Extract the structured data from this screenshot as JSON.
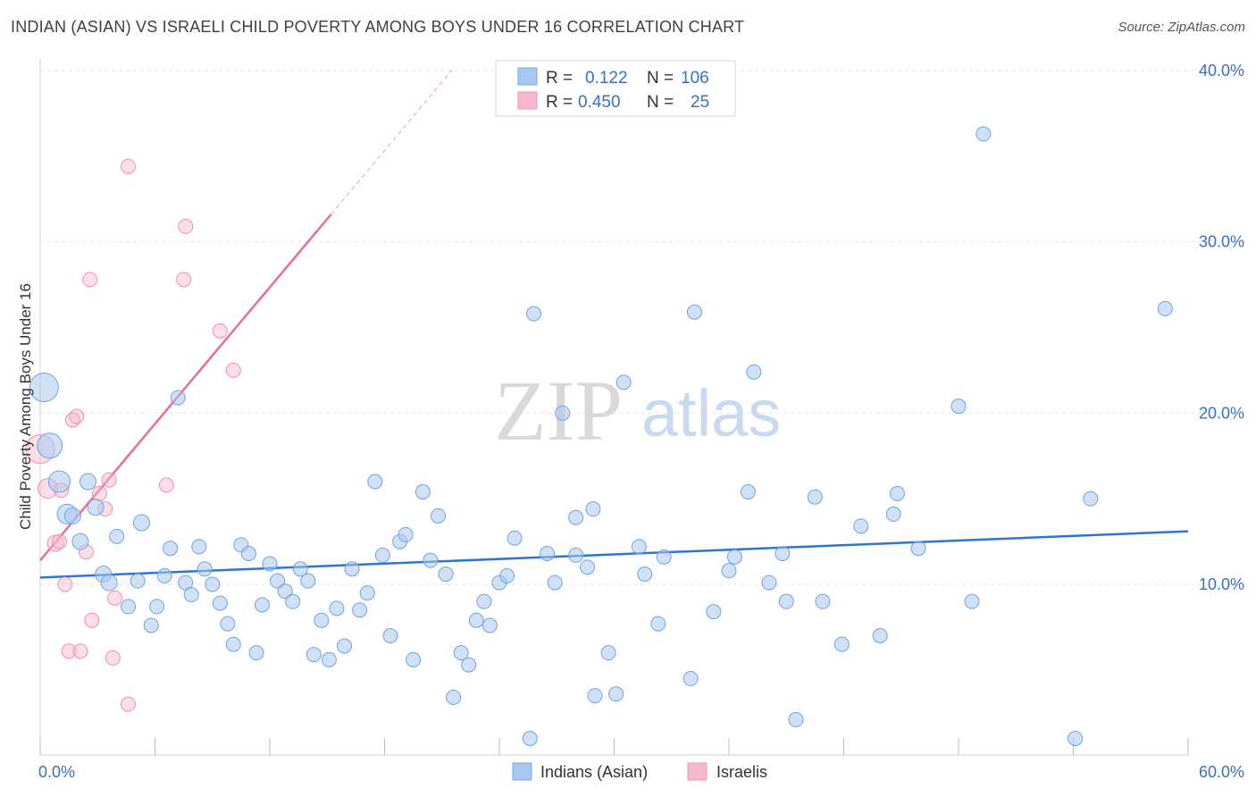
{
  "header": {
    "title": "INDIAN (ASIAN) VS ISRAELI CHILD POVERTY AMONG BOYS UNDER 16 CORRELATION CHART",
    "source": "Source: ZipAtlas.com"
  },
  "watermark": {
    "zip": "ZIP",
    "atlas": "atlas"
  },
  "legend_box": {
    "rows": [
      {
        "r_label": "R =",
        "r_value": "0.122",
        "n_label": "N =",
        "n_value": "106",
        "color": "#a9c8ee"
      },
      {
        "r_label": "R =",
        "r_value": "0.450",
        "n_label": "N =",
        "n_value": "25",
        "color": "#f5b8cb"
      }
    ]
  },
  "bottom_legend": [
    {
      "label": "Indians (Asian)",
      "color": "#a9c8ee"
    },
    {
      "label": "Israelis",
      "color": "#f5b8cb"
    }
  ],
  "chart_data": {
    "type": "scatter",
    "title": "INDIAN (ASIAN) VS ISRAELI CHILD POVERTY AMONG BOYS UNDER 16 CORRELATION CHART",
    "xlabel": "",
    "ylabel": "Child Poverty Among Boys Under 16",
    "xlim": [
      0,
      60
    ],
    "ylim": [
      0,
      40
    ],
    "x_tick_labels": [
      "0.0%",
      "60.0%"
    ],
    "y_ticks": [
      10,
      20,
      30,
      40
    ],
    "y_tick_labels": [
      "10.0%",
      "20.0%",
      "30.0%",
      "40.0%"
    ],
    "grid": true,
    "legend_position": "top-center",
    "colors": {
      "indians": "#6fa3e0",
      "israelis": "#ef8fae",
      "indians_line": "#2f74d0",
      "israelis_line": "#e86d95"
    },
    "series": [
      {
        "name": "Indians (Asian)",
        "trend": {
          "x0": 0,
          "y0": 10.4,
          "x1": 60,
          "y1": 13.1
        },
        "points": [
          [
            0.2,
            21.5,
            16
          ],
          [
            0.5,
            18.1,
            14
          ],
          [
            1.0,
            16.0,
            12
          ],
          [
            1.4,
            14.1,
            11
          ],
          [
            1.7,
            14.0,
            9
          ],
          [
            2.1,
            12.5,
            9
          ],
          [
            2.5,
            16.0,
            9
          ],
          [
            2.9,
            14.5,
            9
          ],
          [
            3.3,
            10.6,
            9
          ],
          [
            3.6,
            10.1,
            9
          ],
          [
            4.0,
            12.8,
            8
          ],
          [
            4.6,
            8.7,
            8
          ],
          [
            5.1,
            10.2,
            8
          ],
          [
            5.3,
            13.6,
            9
          ],
          [
            5.8,
            7.6,
            8
          ],
          [
            6.1,
            8.7,
            8
          ],
          [
            6.5,
            10.5,
            8
          ],
          [
            6.8,
            12.1,
            8
          ],
          [
            7.2,
            20.9,
            8
          ],
          [
            7.6,
            10.1,
            8
          ],
          [
            7.9,
            9.4,
            8
          ],
          [
            8.3,
            12.2,
            8
          ],
          [
            8.6,
            10.9,
            8
          ],
          [
            9.0,
            10.0,
            8
          ],
          [
            9.4,
            8.9,
            8
          ],
          [
            9.8,
            7.7,
            8
          ],
          [
            10.1,
            6.5,
            8
          ],
          [
            10.5,
            12.3,
            8
          ],
          [
            10.9,
            11.8,
            8
          ],
          [
            11.3,
            6.0,
            8
          ],
          [
            11.6,
            8.8,
            8
          ],
          [
            12.0,
            11.2,
            8
          ],
          [
            12.4,
            10.2,
            8
          ],
          [
            12.8,
            9.6,
            8
          ],
          [
            13.2,
            9.0,
            8
          ],
          [
            13.6,
            10.9,
            8
          ],
          [
            14.0,
            10.2,
            8
          ],
          [
            14.3,
            5.9,
            8
          ],
          [
            14.7,
            7.9,
            8
          ],
          [
            15.1,
            5.6,
            8
          ],
          [
            15.5,
            8.6,
            8
          ],
          [
            15.9,
            6.4,
            8
          ],
          [
            16.3,
            10.9,
            8
          ],
          [
            16.7,
            8.5,
            8
          ],
          [
            17.1,
            9.5,
            8
          ],
          [
            17.5,
            16.0,
            8
          ],
          [
            17.9,
            11.7,
            8
          ],
          [
            18.3,
            7.0,
            8
          ],
          [
            18.8,
            12.5,
            8
          ],
          [
            19.1,
            12.9,
            8
          ],
          [
            19.5,
            5.6,
            8
          ],
          [
            20.0,
            15.4,
            8
          ],
          [
            20.4,
            11.4,
            8
          ],
          [
            20.8,
            14.0,
            8
          ],
          [
            21.2,
            10.6,
            8
          ],
          [
            21.6,
            3.4,
            8
          ],
          [
            22.0,
            6.0,
            8
          ],
          [
            22.4,
            5.3,
            8
          ],
          [
            22.8,
            7.9,
            8
          ],
          [
            23.2,
            9.0,
            8
          ],
          [
            23.5,
            7.6,
            8
          ],
          [
            24.0,
            10.1,
            8
          ],
          [
            24.4,
            10.5,
            8
          ],
          [
            24.8,
            12.7,
            8
          ],
          [
            25.6,
            1.0,
            8
          ],
          [
            25.8,
            25.8,
            8
          ],
          [
            26.5,
            11.8,
            8
          ],
          [
            26.9,
            10.1,
            8
          ],
          [
            27.3,
            20.0,
            8
          ],
          [
            28.0,
            13.9,
            8
          ],
          [
            28.0,
            11.7,
            8
          ],
          [
            28.6,
            11.0,
            8
          ],
          [
            28.9,
            14.4,
            8
          ],
          [
            29.0,
            3.5,
            8
          ],
          [
            29.7,
            6.0,
            8
          ],
          [
            30.1,
            3.6,
            8
          ],
          [
            30.5,
            21.8,
            8
          ],
          [
            31.3,
            12.2,
            8
          ],
          [
            31.6,
            10.6,
            8
          ],
          [
            32.3,
            7.7,
            8
          ],
          [
            32.6,
            11.6,
            8
          ],
          [
            34.0,
            4.5,
            8
          ],
          [
            34.2,
            25.9,
            8
          ],
          [
            35.2,
            8.4,
            8
          ],
          [
            36.0,
            10.8,
            8
          ],
          [
            36.3,
            11.6,
            8
          ],
          [
            37.0,
            15.4,
            8
          ],
          [
            37.3,
            22.4,
            8
          ],
          [
            38.1,
            10.1,
            8
          ],
          [
            38.8,
            11.8,
            8
          ],
          [
            39.0,
            9.0,
            8
          ],
          [
            39.5,
            2.1,
            8
          ],
          [
            40.5,
            15.1,
            8
          ],
          [
            40.9,
            9.0,
            8
          ],
          [
            41.9,
            6.5,
            8
          ],
          [
            42.9,
            13.4,
            8
          ],
          [
            43.9,
            7.0,
            8
          ],
          [
            44.6,
            14.1,
            8
          ],
          [
            44.8,
            15.3,
            8
          ],
          [
            45.9,
            12.1,
            8
          ],
          [
            48.0,
            20.4,
            8
          ],
          [
            48.7,
            9.0,
            8
          ],
          [
            49.3,
            36.3,
            8
          ],
          [
            54.9,
            15.0,
            8
          ],
          [
            54.1,
            1.0,
            8
          ],
          [
            58.8,
            26.1,
            8
          ]
        ]
      },
      {
        "name": "Israelis",
        "trend": {
          "x0": 0,
          "y0": 11.4,
          "x1": 15.2,
          "y1": 31.6,
          "dash_x1": 21.5,
          "dash_y1": 40.0
        },
        "points": [
          [
            0.0,
            17.9,
            16
          ],
          [
            0.4,
            15.6,
            11
          ],
          [
            0.8,
            12.4,
            9
          ],
          [
            1.1,
            15.5,
            8
          ],
          [
            1.3,
            10.0,
            8
          ],
          [
            1.5,
            6.1,
            8
          ],
          [
            1.7,
            19.6,
            8
          ],
          [
            1.9,
            19.8,
            8
          ],
          [
            2.1,
            6.1,
            8
          ],
          [
            2.4,
            11.9,
            8
          ],
          [
            2.6,
            27.8,
            8
          ],
          [
            2.7,
            7.9,
            8
          ],
          [
            3.1,
            15.3,
            8
          ],
          [
            3.4,
            14.4,
            8
          ],
          [
            3.6,
            16.1,
            8
          ],
          [
            3.8,
            5.7,
            8
          ],
          [
            3.9,
            9.2,
            8
          ],
          [
            4.6,
            3.0,
            8
          ],
          [
            4.6,
            34.4,
            8
          ],
          [
            6.6,
            15.8,
            8
          ],
          [
            7.5,
            27.8,
            8
          ],
          [
            7.6,
            30.9,
            8
          ],
          [
            9.4,
            24.8,
            8
          ],
          [
            10.1,
            22.5,
            8
          ],
          [
            1.0,
            12.5,
            8
          ]
        ]
      }
    ]
  }
}
